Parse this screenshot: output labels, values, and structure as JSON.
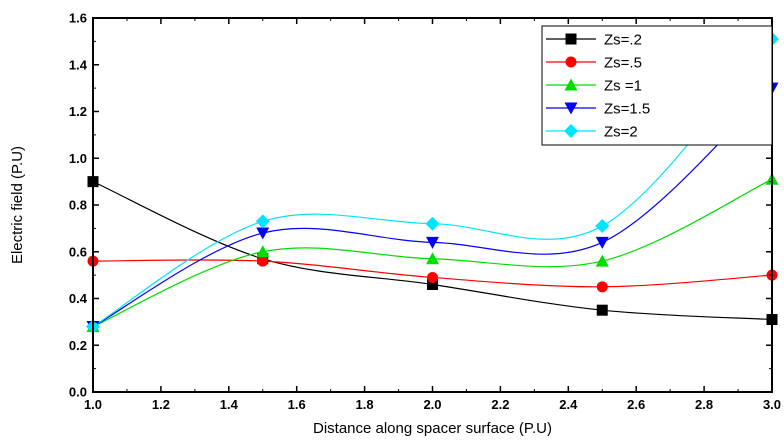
{
  "chart_data": {
    "type": "line",
    "title": "",
    "xlabel": "Distance along spacer surface (P.U)",
    "ylabel": "Electric field (P.U)",
    "xlim": [
      1.0,
      3.0
    ],
    "ylim": [
      0.0,
      1.6
    ],
    "x_ticks": [
      "1.0",
      "1.2",
      "1.4",
      "1.6",
      "1.8",
      "2.0",
      "2.2",
      "2.4",
      "2.6",
      "2.8",
      "3.0"
    ],
    "y_ticks": [
      "0.0",
      "0.2",
      "0.4",
      "0.6",
      "0.8",
      "1.0",
      "1.2",
      "1.4",
      "1.6"
    ],
    "grid": false,
    "legend_position": "top-right",
    "x": [
      1.0,
      1.5,
      2.0,
      2.5,
      3.0
    ],
    "series": [
      {
        "name": "Zs=.2",
        "color": "#000000",
        "marker": "square",
        "values": [
          0.9,
          0.57,
          0.46,
          0.35,
          0.31
        ]
      },
      {
        "name": "Zs=.5",
        "color": "#ff0000",
        "marker": "circle",
        "values": [
          0.56,
          0.56,
          0.49,
          0.45,
          0.5
        ]
      },
      {
        "name": "Zs =1",
        "color": "#00dd00",
        "marker": "triangle-up",
        "values": [
          0.28,
          0.6,
          0.57,
          0.56,
          0.91
        ]
      },
      {
        "name": "Zs=1.5",
        "color": "#0000ff",
        "marker": "triangle-down",
        "values": [
          0.28,
          0.68,
          0.64,
          0.64,
          1.3
        ]
      },
      {
        "name": "Zs=2",
        "color": "#00e5ff",
        "marker": "diamond",
        "values": [
          0.28,
          0.73,
          0.72,
          0.71,
          1.51
        ]
      }
    ]
  }
}
